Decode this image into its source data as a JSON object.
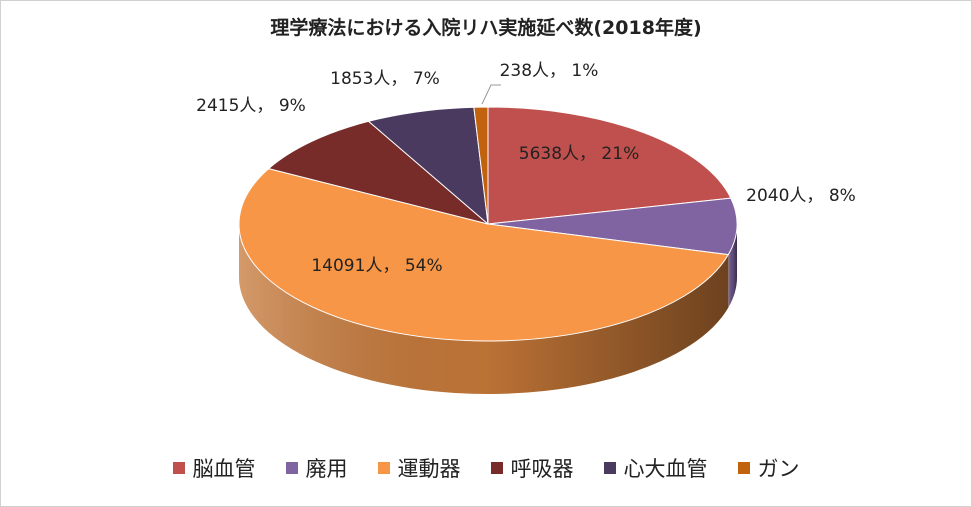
{
  "chart_data": {
    "type": "pie",
    "style": "3d",
    "title": "理学療法における入院リハ実施延べ数(2018年度)",
    "categories": [
      "脳血管",
      "廃用",
      "運動器",
      "呼吸器",
      "心大血管",
      "ガン"
    ],
    "values": [
      5638,
      2040,
      14091,
      2415,
      1853,
      238
    ],
    "percents": [
      21,
      8,
      54,
      9,
      7,
      1
    ],
    "labels": [
      "5638人， 21%",
      "2040人， 8%",
      "14091人， 54%",
      "2415人， 9%",
      "1853人， 7%",
      "238人， 1%"
    ],
    "colors": [
      "#c0504d",
      "#8064a2",
      "#f79646",
      "#772c2a",
      "#4b3a60",
      "#c0620e"
    ],
    "legend_position": "bottom"
  }
}
